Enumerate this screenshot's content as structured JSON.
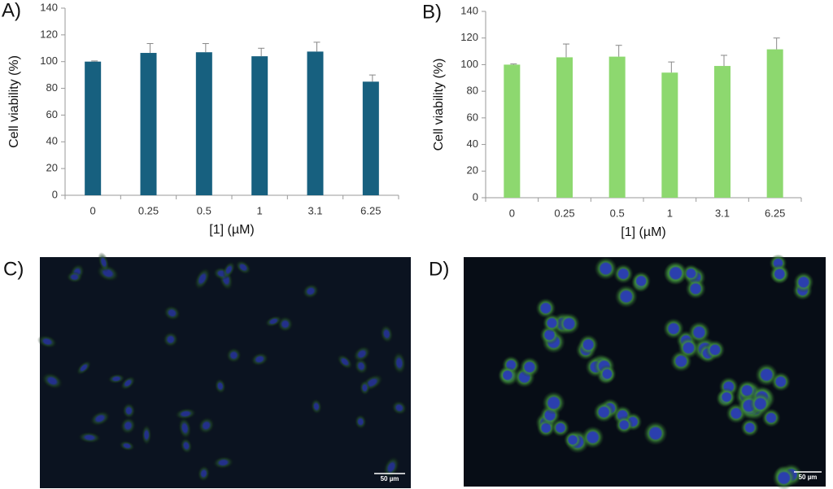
{
  "panel_labels": [
    "A)",
    "B)",
    "C)",
    "D)"
  ],
  "scale_bars": [
    "50 µm",
    "50 µm"
  ],
  "chart_data": [
    {
      "type": "bar",
      "x_label": "[1] (µM)",
      "y_label": "Cell viability (%)",
      "color": "#17607f",
      "categories": [
        "0",
        "0.25",
        "0.5",
        "1",
        "3.1",
        "6.25"
      ],
      "values": [
        100,
        106.5,
        107,
        104,
        107.5,
        85
      ],
      "errors": [
        0.5,
        7,
        6.5,
        6,
        7,
        5
      ],
      "ylim": [
        0,
        140
      ],
      "yticks": [
        0,
        20,
        40,
        60,
        80,
        100,
        120,
        140
      ]
    },
    {
      "type": "bar",
      "x_label": "[1] (µM)",
      "y_label": "Cell viability (%)",
      "color": "#8dd86f",
      "categories": [
        "0",
        "0.25",
        "0.5",
        "1",
        "3.1",
        "6.25"
      ],
      "values": [
        100,
        105.5,
        106,
        94,
        99,
        111.5
      ],
      "errors": [
        0.5,
        10,
        8.5,
        8,
        8,
        8.5
      ],
      "ylim": [
        0,
        140
      ],
      "yticks": [
        0,
        20,
        40,
        60,
        80,
        100,
        120,
        140
      ]
    }
  ]
}
